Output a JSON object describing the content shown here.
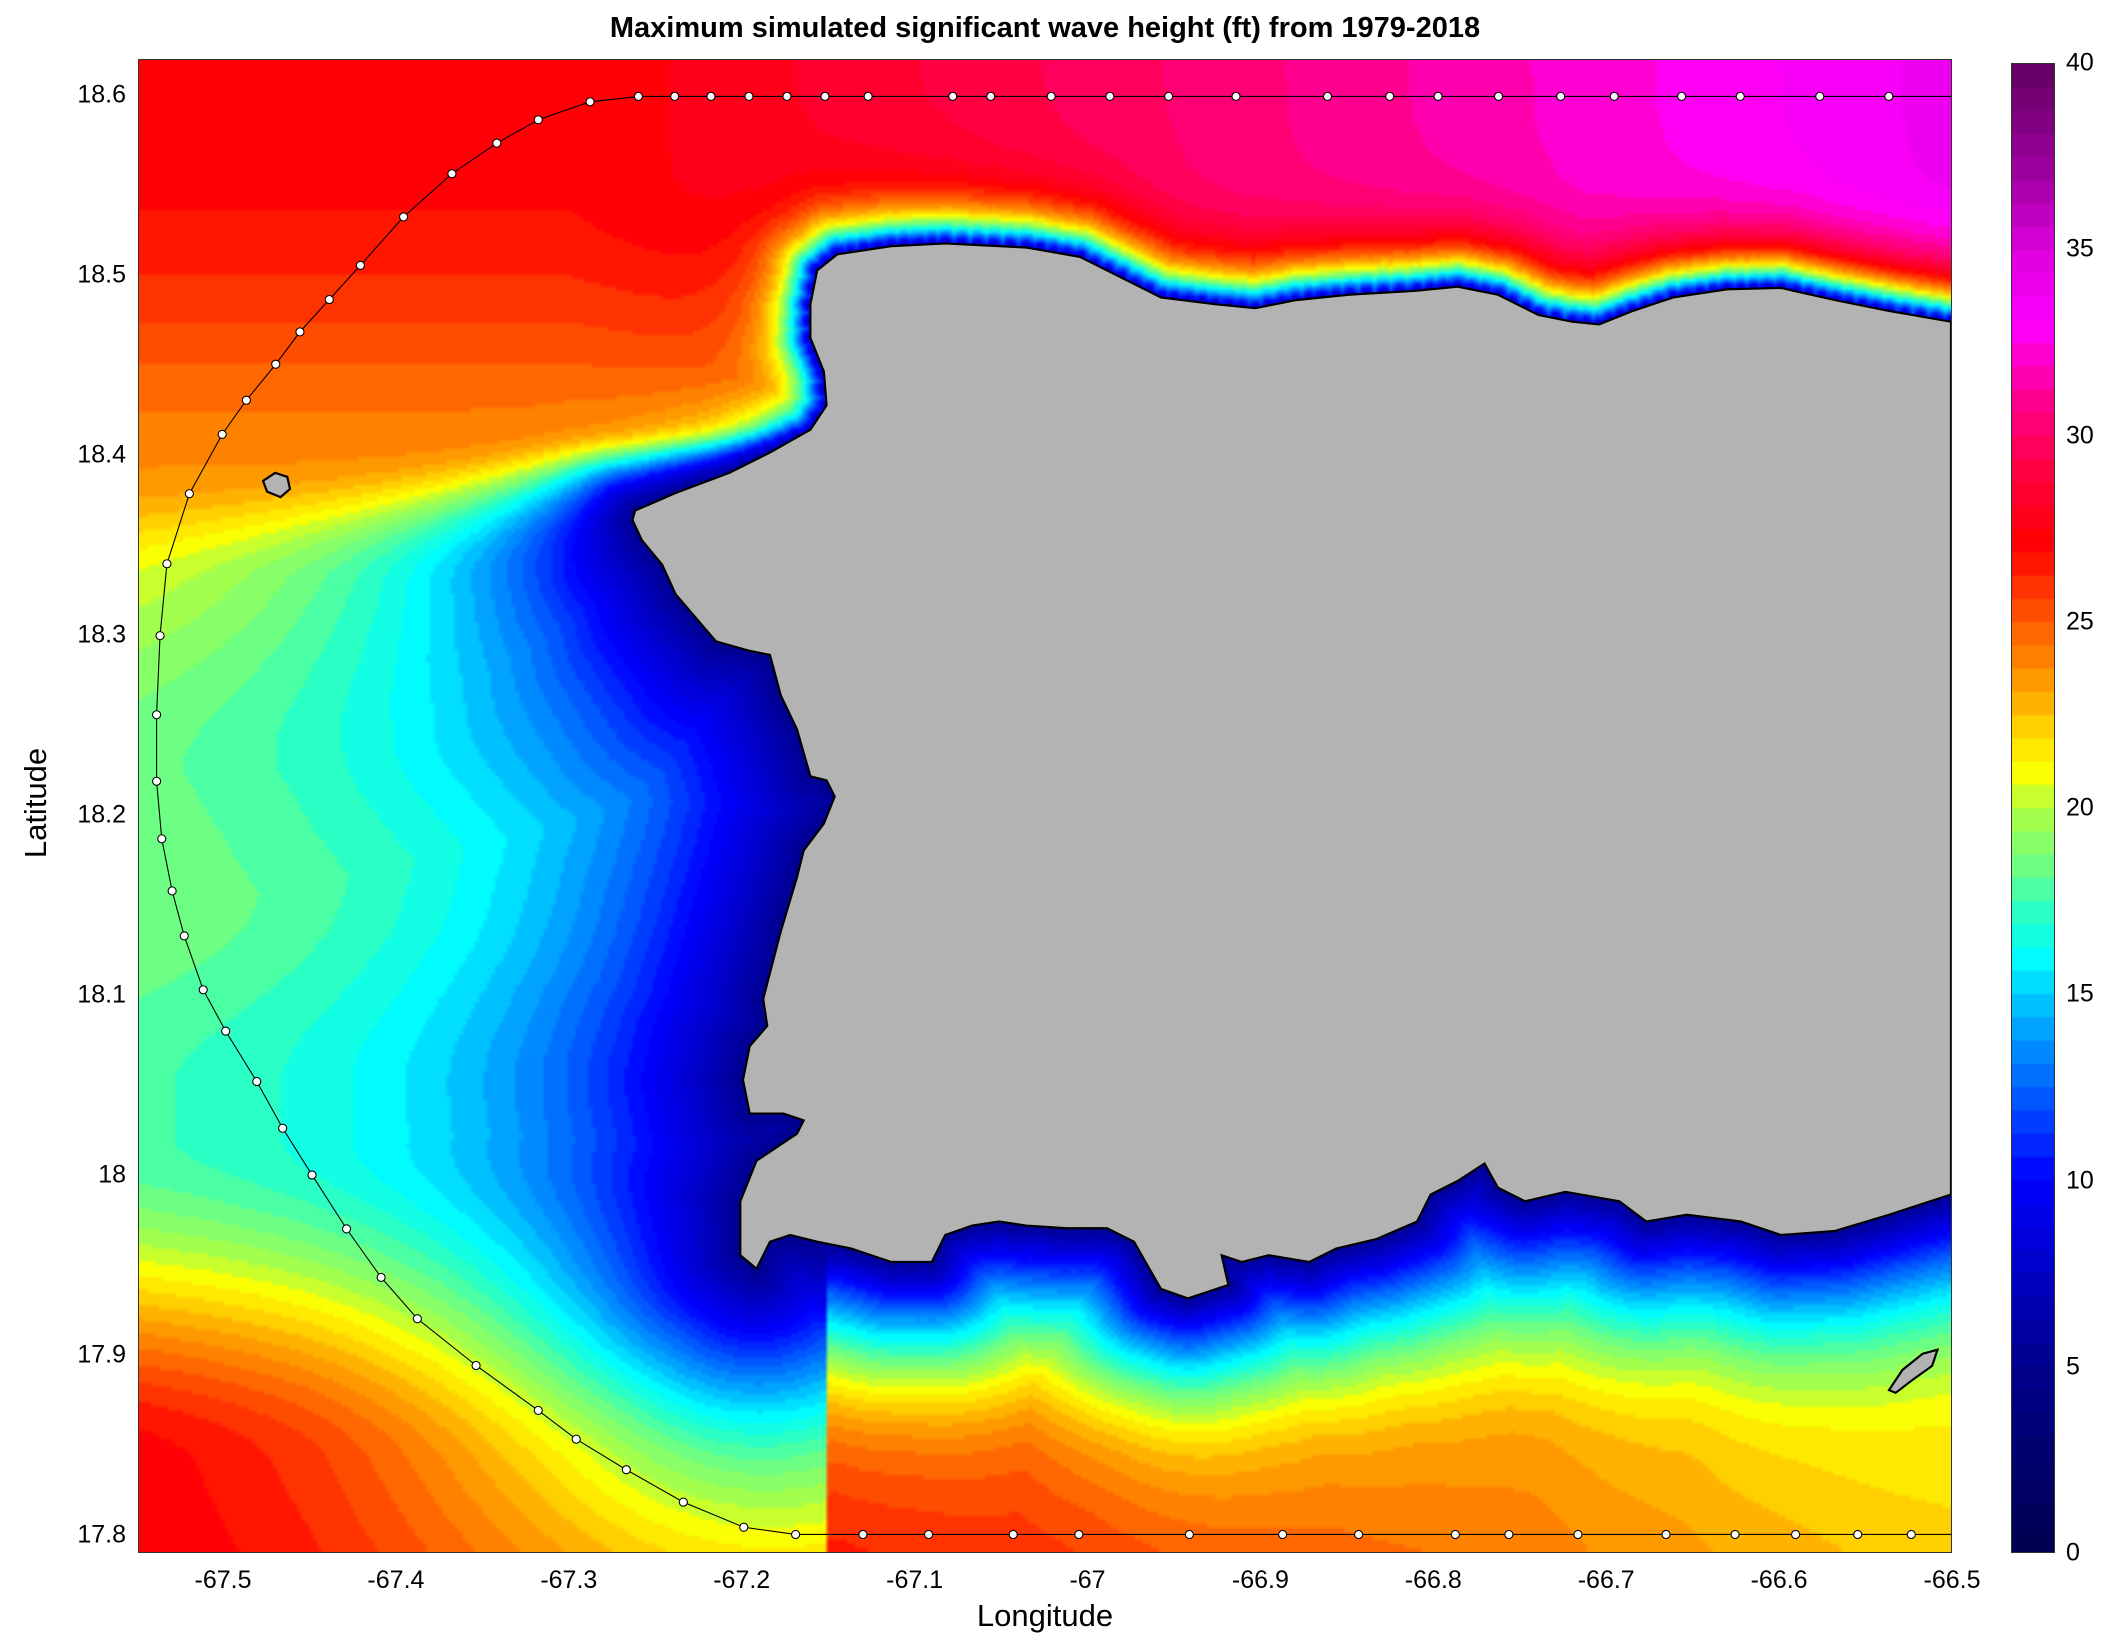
{
  "title": "Maximum simulated significant wave height (ft) from 1979-2018",
  "chart_data": {
    "type": "heatmap",
    "title": "Maximum simulated significant wave height (ft) from 1979-2018",
    "xlabel": "Longitude",
    "ylabel": "Latitude",
    "xlim": [
      -67.549,
      -66.5
    ],
    "ylim": [
      17.79,
      18.62
    ],
    "xticks": [
      "-67.5",
      "-67.4",
      "-67.3",
      "-67.2",
      "-67.1",
      "-67",
      "-66.9",
      "-66.8",
      "-66.7",
      "-66.6",
      "-66.5"
    ],
    "yticks": [
      "17.8",
      "17.9",
      "18",
      "18.1",
      "18.2",
      "18.3",
      "18.4",
      "18.5",
      "18.6"
    ],
    "colorbar": {
      "range": [
        0,
        40
      ],
      "ticks": [
        "0",
        "5",
        "10",
        "15",
        "20",
        "25",
        "30",
        "35",
        "40"
      ],
      "stops": [
        [
          0,
          "#000050"
        ],
        [
          5,
          "#00008c"
        ],
        [
          10,
          "#0000ff"
        ],
        [
          12,
          "#0050ff"
        ],
        [
          14,
          "#00a0ff"
        ],
        [
          15,
          "#00d0ff"
        ],
        [
          16,
          "#00ffff"
        ],
        [
          17,
          "#20ffd0"
        ],
        [
          18.5,
          "#70ff80"
        ],
        [
          20,
          "#b0ff40"
        ],
        [
          21,
          "#ffff00"
        ],
        [
          22,
          "#ffd800"
        ],
        [
          23,
          "#ffaa00"
        ],
        [
          24.5,
          "#ff7000"
        ],
        [
          26,
          "#ff3000"
        ],
        [
          27,
          "#ff0000"
        ],
        [
          29,
          "#ff0040"
        ],
        [
          31,
          "#ff0090"
        ],
        [
          33,
          "#ff00ff"
        ],
        [
          35,
          "#dd00dd"
        ],
        [
          37,
          "#a000a0"
        ],
        [
          40,
          "#600060"
        ]
      ]
    },
    "land_color": "#b3b3b3",
    "boundary_nodes": [
      [
        -67.26,
        18.6
      ],
      [
        -67.239,
        18.6
      ],
      [
        -67.218,
        18.6
      ],
      [
        -67.196,
        18.6
      ],
      [
        -67.174,
        18.6
      ],
      [
        -67.152,
        18.6
      ],
      [
        -67.127,
        18.6
      ],
      [
        -67.078,
        18.6
      ],
      [
        -67.056,
        18.6
      ],
      [
        -67.021,
        18.6
      ],
      [
        -66.987,
        18.6
      ],
      [
        -66.953,
        18.6
      ],
      [
        -66.914,
        18.6
      ],
      [
        -66.861,
        18.6
      ],
      [
        -66.825,
        18.6
      ],
      [
        -66.797,
        18.6
      ],
      [
        -66.762,
        18.6
      ],
      [
        -66.726,
        18.6
      ],
      [
        -66.695,
        18.6
      ],
      [
        -66.656,
        18.6
      ],
      [
        -66.622,
        18.6
      ],
      [
        -66.576,
        18.6
      ],
      [
        -66.536,
        18.6
      ],
      [
        -67.288,
        18.597
      ],
      [
        -67.318,
        18.587
      ],
      [
        -67.342,
        18.574
      ],
      [
        -67.368,
        18.557
      ],
      [
        -67.396,
        18.533
      ],
      [
        -67.421,
        18.506
      ],
      [
        -67.439,
        18.487
      ],
      [
        -67.456,
        18.469
      ],
      [
        -67.47,
        18.451
      ],
      [
        -67.487,
        18.431
      ],
      [
        -67.501,
        18.412
      ],
      [
        -67.52,
        18.379
      ],
      [
        -67.533,
        18.34
      ],
      [
        -67.537,
        18.3
      ],
      [
        -67.539,
        18.256
      ],
      [
        -67.539,
        18.219
      ],
      [
        -67.536,
        18.187
      ],
      [
        -67.53,
        18.158
      ],
      [
        -67.523,
        18.133
      ],
      [
        -67.512,
        18.103
      ],
      [
        -67.499,
        18.08
      ],
      [
        -67.481,
        18.052
      ],
      [
        -67.466,
        18.026
      ],
      [
        -67.449,
        18.0
      ],
      [
        -67.429,
        17.97
      ],
      [
        -67.409,
        17.943
      ],
      [
        -67.388,
        17.92
      ],
      [
        -67.354,
        17.894
      ],
      [
        -67.318,
        17.869
      ],
      [
        -67.296,
        17.853
      ],
      [
        -67.267,
        17.836
      ],
      [
        -67.234,
        17.818
      ],
      [
        -67.199,
        17.804
      ],
      [
        -67.169,
        17.8
      ],
      [
        -67.13,
        17.8
      ],
      [
        -67.092,
        17.8
      ],
      [
        -67.043,
        17.8
      ],
      [
        -67.005,
        17.8
      ],
      [
        -66.941,
        17.8
      ],
      [
        -66.887,
        17.8
      ],
      [
        -66.843,
        17.8
      ],
      [
        -66.787,
        17.8
      ],
      [
        -66.756,
        17.8
      ],
      [
        -66.716,
        17.8
      ],
      [
        -66.665,
        17.8
      ],
      [
        -66.625,
        17.8
      ],
      [
        -66.59,
        17.8
      ],
      [
        -66.554,
        17.8
      ],
      [
        -66.523,
        17.8
      ]
    ]
  }
}
